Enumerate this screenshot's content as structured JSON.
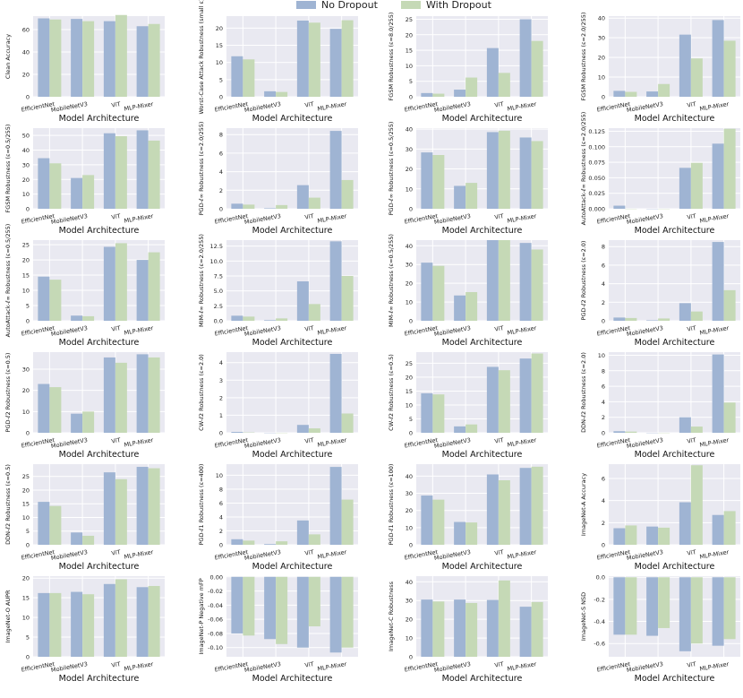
{
  "legend": {
    "no_dropout": "No Dropout",
    "with_dropout": "With Dropout"
  },
  "colors": {
    "no_dropout": "#9fb4d3",
    "with_dropout": "#c5d9b6",
    "panel_bg": "#e9e9f1",
    "grid": "#ffffff"
  },
  "chart_data": [
    {
      "type": "bar",
      "ylabel": "Clean Accuracy",
      "xlabel": "Model Architecture",
      "categories": [
        "EfficientNet",
        "MobileNetV3",
        "ViT",
        "MLP-Mixer"
      ],
      "ylim": [
        0,
        72
      ],
      "yticks": [
        0,
        20,
        40,
        60
      ],
      "series": [
        {
          "name": "No Dropout",
          "values": [
            70,
            69.5,
            67.5,
            63
          ]
        },
        {
          "name": "With Dropout",
          "values": [
            69,
            67.5,
            73,
            65
          ]
        }
      ]
    },
    {
      "type": "bar",
      "ylabel": "Worst-Case Attack Robustness (small ε)",
      "xlabel": "Model Architecture",
      "categories": [
        "EfficientNet",
        "MobileNetV3",
        "ViT",
        "MLP-Mixer"
      ],
      "ylim": [
        0,
        23.5
      ],
      "yticks": [
        0,
        5,
        10,
        15,
        20
      ],
      "series": [
        {
          "name": "No Dropout",
          "values": [
            11.8,
            1.6,
            22.2,
            19.8
          ]
        },
        {
          "name": "With Dropout",
          "values": [
            10.9,
            1.4,
            21.6,
            22.3
          ]
        }
      ]
    },
    {
      "type": "bar",
      "ylabel": "FGSM Robustness (ε=8.0/255)",
      "xlabel": "Model Architecture",
      "categories": [
        "EfficientNet",
        "MobileNetV3",
        "ViT",
        "MLP-Mixer"
      ],
      "ylim": [
        0,
        26
      ],
      "yticks": [
        0,
        5,
        10,
        15,
        20,
        25
      ],
      "series": [
        {
          "name": "No Dropout",
          "values": [
            1.2,
            2.3,
            15.7,
            25
          ]
        },
        {
          "name": "With Dropout",
          "values": [
            1.0,
            6.2,
            7.7,
            18
          ]
        }
      ]
    },
    {
      "type": "bar",
      "ylabel": "FGSM Robustness (ε=2.0/255)",
      "xlabel": "Model Architecture",
      "categories": [
        "EfficientNet",
        "MobileNetV3",
        "ViT",
        "MLP-Mixer"
      ],
      "ylim": [
        0,
        41
      ],
      "yticks": [
        0,
        10,
        20,
        30,
        40
      ],
      "series": [
        {
          "name": "No Dropout",
          "values": [
            3.0,
            2.7,
            31.6,
            39
          ]
        },
        {
          "name": "With Dropout",
          "values": [
            2.5,
            6.5,
            19.5,
            28.5
          ]
        }
      ]
    },
    {
      "type": "bar",
      "ylabel": "FGSM Robustness (ε=0.5/255)",
      "xlabel": "Model Architecture",
      "categories": [
        "EfficientNet",
        "MobileNetV3",
        "ViT",
        "MLP-Mixer"
      ],
      "ylim": [
        0,
        55
      ],
      "yticks": [
        0,
        10,
        20,
        30,
        40,
        50
      ],
      "series": [
        {
          "name": "No Dropout",
          "values": [
            34.5,
            21,
            51.5,
            53.5
          ]
        },
        {
          "name": "With Dropout",
          "values": [
            31,
            23,
            49.5,
            46.5
          ]
        }
      ]
    },
    {
      "type": "bar",
      "ylabel": "PGD-ℓ∞ Robustness (ε=2.0/255)",
      "xlabel": "Model Architecture",
      "categories": [
        "EfficientNet",
        "MobileNetV3",
        "ViT",
        "MLP-Mixer"
      ],
      "ylim": [
        0,
        8.7
      ],
      "yticks": [
        0,
        2,
        4,
        6,
        8
      ],
      "series": [
        {
          "name": "No Dropout",
          "values": [
            0.55,
            0.05,
            2.55,
            8.4
          ]
        },
        {
          "name": "With Dropout",
          "values": [
            0.45,
            0.4,
            1.2,
            3.1
          ]
        }
      ]
    },
    {
      "type": "bar",
      "ylabel": "PGD-ℓ∞ Robustness (ε=0.5/255)",
      "xlabel": "Model Architecture",
      "categories": [
        "EfficientNet",
        "MobileNetV3",
        "ViT",
        "MLP-Mixer"
      ],
      "ylim": [
        0,
        40.5
      ],
      "yticks": [
        0,
        10,
        20,
        30,
        40
      ],
      "series": [
        {
          "name": "No Dropout",
          "values": [
            28.3,
            11.5,
            38.5,
            35.8
          ]
        },
        {
          "name": "With Dropout",
          "values": [
            27,
            13,
            39.2,
            34
          ]
        }
      ]
    },
    {
      "type": "bar",
      "ylabel": "AutoAttack-ℓ∞ Robustness (ε=2.0/255)",
      "xlabel": "Model Architecture",
      "categories": [
        "EfficientNet",
        "MobileNetV3",
        "ViT",
        "MLP-Mixer"
      ],
      "ylim": [
        0,
        0.13
      ],
      "yticks": [
        0,
        0.025,
        0.05,
        0.075,
        0.1,
        0.125
      ],
      "yticklabels": [
        "0.000",
        "0.025",
        "0.050",
        "0.075",
        "0.100",
        "0.125"
      ],
      "series": [
        {
          "name": "No Dropout",
          "values": [
            0.005,
            0,
            0.066,
            0.105
          ]
        },
        {
          "name": "With Dropout",
          "values": [
            0,
            0,
            0.074,
            0.129
          ]
        }
      ]
    },
    {
      "type": "bar",
      "ylabel": "AutoAttack-ℓ∞ Robustness (ε=0.5/255)",
      "xlabel": "Model Architecture",
      "categories": [
        "EfficientNet",
        "MobileNetV3",
        "ViT",
        "MLP-Mixer"
      ],
      "ylim": [
        0,
        26.5
      ],
      "yticks": [
        0,
        5,
        10,
        15,
        20,
        25
      ],
      "series": [
        {
          "name": "No Dropout",
          "values": [
            14.5,
            1.7,
            24.3,
            20
          ]
        },
        {
          "name": "With Dropout",
          "values": [
            13.5,
            1.5,
            25.5,
            22.5
          ]
        }
      ]
    },
    {
      "type": "bar",
      "ylabel": "MIM-ℓ∞ Robustness (ε=2.0/255)",
      "xlabel": "Model Architecture",
      "categories": [
        "EfficientNet",
        "MobileNetV3",
        "ViT",
        "MLP-Mixer"
      ],
      "ylim": [
        0,
        13.5
      ],
      "yticks": [
        0,
        2.5,
        5,
        7.5,
        10,
        12.5
      ],
      "yticklabels": [
        "0.0",
        "2.5",
        "5.0",
        "7.5",
        "10.0",
        "12.5"
      ],
      "series": [
        {
          "name": "No Dropout",
          "values": [
            0.85,
            0.1,
            6.6,
            13.3
          ]
        },
        {
          "name": "With Dropout",
          "values": [
            0.7,
            0.4,
            2.8,
            7.5
          ]
        }
      ]
    },
    {
      "type": "bar",
      "ylabel": "MIM-ℓ∞ Robustness (ε=0.5/255)",
      "xlabel": "Model Architecture",
      "categories": [
        "EfficientNet",
        "MobileNetV3",
        "ViT",
        "MLP-Mixer"
      ],
      "ylim": [
        0,
        43
      ],
      "yticks": [
        0,
        10,
        20,
        30,
        40
      ],
      "series": [
        {
          "name": "No Dropout",
          "values": [
            31,
            13.5,
            43,
            41.5
          ]
        },
        {
          "name": "With Dropout",
          "values": [
            29.3,
            15.3,
            43,
            38
          ]
        }
      ]
    },
    {
      "type": "bar",
      "ylabel": "PGD-ℓ2 Robustness (ε=2.0)",
      "xlabel": "Model Architecture",
      "categories": [
        "EfficientNet",
        "MobileNetV3",
        "ViT",
        "MLP-Mixer"
      ],
      "ylim": [
        0,
        8.7
      ],
      "yticks": [
        0,
        2,
        4,
        6,
        8
      ],
      "series": [
        {
          "name": "No Dropout",
          "values": [
            0.35,
            0.05,
            1.9,
            8.5
          ]
        },
        {
          "name": "With Dropout",
          "values": [
            0.3,
            0.25,
            1.0,
            3.3
          ]
        }
      ]
    },
    {
      "type": "bar",
      "ylabel": "PGD-ℓ2 Robustness (ε=0.5)",
      "xlabel": "Model Architecture",
      "categories": [
        "EfficientNet",
        "MobileNetV3",
        "ViT",
        "MLP-Mixer"
      ],
      "ylim": [
        0,
        38
      ],
      "yticks": [
        0,
        10,
        20,
        30
      ],
      "series": [
        {
          "name": "No Dropout",
          "values": [
            23,
            9,
            35.5,
            37
          ]
        },
        {
          "name": "With Dropout",
          "values": [
            21.5,
            10,
            33,
            35.5
          ]
        }
      ]
    },
    {
      "type": "bar",
      "ylabel": "CW-ℓ2 Robustness (ε=2.0)",
      "xlabel": "Model Architecture",
      "categories": [
        "EfficientNet",
        "MobileNetV3",
        "ViT",
        "MLP-Mixer"
      ],
      "ylim": [
        0,
        4.6
      ],
      "yticks": [
        0,
        1,
        2,
        3,
        4
      ],
      "series": [
        {
          "name": "No Dropout",
          "values": [
            0.05,
            0,
            0.45,
            4.5
          ]
        },
        {
          "name": "With Dropout",
          "values": [
            0.02,
            0,
            0.25,
            1.1
          ]
        }
      ]
    },
    {
      "type": "bar",
      "ylabel": "CW-ℓ2 Robustness (ε=0.5)",
      "xlabel": "Model Architecture",
      "categories": [
        "EfficientNet",
        "MobileNetV3",
        "ViT",
        "MLP-Mixer"
      ],
      "ylim": [
        0,
        29
      ],
      "yticks": [
        0,
        5,
        10,
        15,
        20,
        25
      ],
      "series": [
        {
          "name": "No Dropout",
          "values": [
            14.2,
            2.3,
            23.7,
            26.7
          ]
        },
        {
          "name": "With Dropout",
          "values": [
            13.8,
            3.0,
            22.5,
            28.5
          ]
        }
      ]
    },
    {
      "type": "bar",
      "ylabel": "DDN-ℓ2 Robustness (ε=2.0)",
      "xlabel": "Model Architecture",
      "categories": [
        "EfficientNet",
        "MobileNetV3",
        "ViT",
        "MLP-Mixer"
      ],
      "ylim": [
        0,
        10.4
      ],
      "yticks": [
        0,
        2,
        4,
        6,
        8,
        10
      ],
      "series": [
        {
          "name": "No Dropout",
          "values": [
            0.2,
            0,
            2.0,
            10.1
          ]
        },
        {
          "name": "With Dropout",
          "values": [
            0.15,
            0,
            0.8,
            3.9
          ]
        }
      ]
    },
    {
      "type": "bar",
      "ylabel": "DDN-ℓ2 Robustness (ε=0.5)",
      "xlabel": "Model Architecture",
      "categories": [
        "EfficientNet",
        "MobileNetV3",
        "ViT",
        "MLP-Mixer"
      ],
      "ylim": [
        0,
        29.5
      ],
      "yticks": [
        0,
        5,
        10,
        15,
        20,
        25
      ],
      "series": [
        {
          "name": "No Dropout",
          "values": [
            15.7,
            4.5,
            26.5,
            28.5
          ]
        },
        {
          "name": "With Dropout",
          "values": [
            14.2,
            3.3,
            24,
            28
          ]
        }
      ]
    },
    {
      "type": "bar",
      "ylabel": "PGD-ℓ1 Robustness (ε=400)",
      "xlabel": "Model Architecture",
      "categories": [
        "EfficientNet",
        "MobileNetV3",
        "ViT",
        "MLP-Mixer"
      ],
      "ylim": [
        0,
        11.6
      ],
      "yticks": [
        0,
        2,
        4,
        6,
        8,
        10
      ],
      "series": [
        {
          "name": "No Dropout",
          "values": [
            0.8,
            0.1,
            3.5,
            11.2
          ]
        },
        {
          "name": "With Dropout",
          "values": [
            0.6,
            0.5,
            1.5,
            6.5
          ]
        }
      ]
    },
    {
      "type": "bar",
      "ylabel": "PGD-ℓ1 Robustness (ε=100)",
      "xlabel": "Model Architecture",
      "categories": [
        "EfficientNet",
        "MobileNetV3",
        "ViT",
        "MLP-Mixer"
      ],
      "ylim": [
        0,
        47
      ],
      "yticks": [
        0,
        10,
        20,
        30,
        40
      ],
      "series": [
        {
          "name": "No Dropout",
          "values": [
            28.7,
            13.3,
            41,
            44.8
          ]
        },
        {
          "name": "With Dropout",
          "values": [
            26.3,
            13,
            37.6,
            45.5
          ]
        }
      ]
    },
    {
      "type": "bar",
      "ylabel": "ImageNet-A Accuracy",
      "xlabel": "Model Architecture",
      "categories": [
        "EfficientNet",
        "MobileNetV3",
        "ViT",
        "MLP-Mixer"
      ],
      "ylim": [
        0,
        7.3
      ],
      "yticks": [
        0,
        2,
        4,
        6
      ],
      "series": [
        {
          "name": "No Dropout",
          "values": [
            1.5,
            1.65,
            3.85,
            2.7
          ]
        },
        {
          "name": "With Dropout",
          "values": [
            1.75,
            1.55,
            7.2,
            3.05
          ]
        }
      ]
    },
    {
      "type": "bar",
      "ylabel": "ImageNet-O AUPR",
      "xlabel": "Model Architecture",
      "categories": [
        "EfficientNet",
        "MobileNetV3",
        "ViT",
        "MLP-Mixer"
      ],
      "ylim": [
        0,
        20.5
      ],
      "yticks": [
        0,
        5,
        10,
        15,
        20
      ],
      "series": [
        {
          "name": "No Dropout",
          "values": [
            16.2,
            16.5,
            18.5,
            17.7
          ]
        },
        {
          "name": "With Dropout",
          "values": [
            16.2,
            15.9,
            19.7,
            18
          ]
        }
      ]
    },
    {
      "type": "bar",
      "ylabel": "ImageNet-P Negative mFP",
      "xlabel": "Model Architecture",
      "categories": [
        "EfficientNet",
        "MobileNetV3",
        "ViT",
        "MLP-Mixer"
      ],
      "ylim": [
        -0.113,
        0.001
      ],
      "yticks": [
        0,
        -0.02,
        -0.04,
        -0.06,
        -0.08,
        -0.1
      ],
      "yticklabels": [
        "0.00",
        "-0.02",
        "-0.04",
        "-0.06",
        "-0.08",
        "-0.10"
      ],
      "series": [
        {
          "name": "No Dropout",
          "values": [
            -0.08,
            -0.088,
            -0.1,
            -0.107
          ]
        },
        {
          "name": "With Dropout",
          "values": [
            -0.083,
            -0.095,
            -0.07,
            -0.1
          ]
        }
      ]
    },
    {
      "type": "bar",
      "ylabel": "ImageNet-C Robustness",
      "xlabel": "Model Architecture",
      "categories": [
        "EfficientNet",
        "MobileNetV3",
        "ViT",
        "MLP-Mixer"
      ],
      "ylim": [
        0,
        43
      ],
      "yticks": [
        0,
        10,
        20,
        30,
        40
      ],
      "series": [
        {
          "name": "No Dropout",
          "values": [
            30.5,
            30.5,
            30.3,
            26.7
          ]
        },
        {
          "name": "With Dropout",
          "values": [
            29.5,
            28.7,
            40.7,
            29.2
          ]
        }
      ]
    },
    {
      "type": "bar",
      "ylabel": "ImageNet-S NSD",
      "xlabel": "Model Architecture",
      "categories": [
        "EfficientNet",
        "MobileNetV3",
        "ViT",
        "MLP-Mixer"
      ],
      "ylim": [
        -0.72,
        0.01
      ],
      "yticks": [
        0,
        -0.2,
        -0.4,
        -0.6
      ],
      "yticklabels": [
        "0.0",
        "-0.2",
        "-0.4",
        "-0.6"
      ],
      "series": [
        {
          "name": "No Dropout",
          "values": [
            -0.52,
            -0.53,
            -0.67,
            -0.62
          ]
        },
        {
          "name": "With Dropout",
          "values": [
            -0.52,
            -0.46,
            -0.6,
            -0.56
          ]
        }
      ]
    }
  ]
}
